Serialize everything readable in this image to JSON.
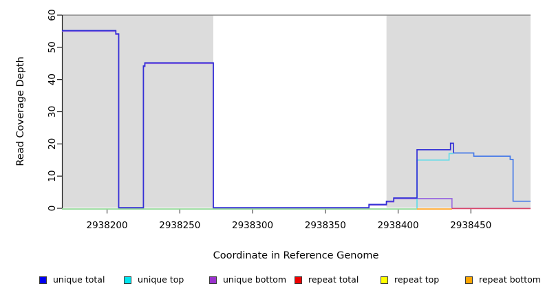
{
  "chart_data": {
    "type": "line",
    "subtype": "step-coverage-plot",
    "title": "",
    "xlabel": "Coordinate in Reference Genome",
    "ylabel": "Read Coverage Depth",
    "xlim": [
      2938169,
      2938491
    ],
    "ylim": [
      0,
      60
    ],
    "x_ticks": [
      2938200,
      2938250,
      2938300,
      2938350,
      2938400,
      2938450
    ],
    "y_ticks": [
      0,
      10,
      20,
      30,
      40,
      50,
      60
    ],
    "grid": false,
    "legend_position": "bottom",
    "background_color": "#ffffff",
    "shaded_band_color": "#dcdcdc",
    "top_border_color": "#8a8a8a",
    "shaded_regions": [
      {
        "from": 2938169,
        "to": 2938273
      },
      {
        "from": 2938392,
        "to": 2938491
      }
    ],
    "series": [
      {
        "name": "unique bottom",
        "dy": 0,
        "visible": true,
        "parts": [
          {
            "color": "#9b6ce0",
            "steps": [
              [
                2938169,
                55
              ],
              [
                2938206,
                54
              ],
              [
                2938208,
                0
              ],
              [
                2938225,
                44
              ],
              [
                2938226,
                45
              ],
              [
                2938273,
                0
              ],
              [
                2938380,
                1
              ],
              [
                2938392,
                2
              ],
              [
                2938397,
                3
              ],
              [
                2938437,
                0
              ],
              [
                2938491,
                0
              ]
            ]
          }
        ]
      },
      {
        "name": "zero baseline",
        "dy": 1.0,
        "visible": true,
        "parts": [
          {
            "color": "#90d795",
            "steps": [
              [
                2938169,
                0
              ],
              [
                2938413,
                0
              ]
            ]
          }
        ]
      },
      {
        "name": "repeat bottom",
        "dy": 1.0,
        "visible": true,
        "parts": [
          {
            "color": "#ffa426",
            "steps": [
              [
                2938413,
                0
              ],
              [
                2938437,
                0
              ]
            ]
          }
        ]
      },
      {
        "name": "repeat total",
        "dy": 0.4,
        "visible": true,
        "parts": [
          {
            "color": "#dd4b66",
            "steps": [
              [
                2938437,
                0
              ],
              [
                2938491,
                0
              ]
            ]
          }
        ]
      },
      {
        "name": "repeat top",
        "dy": 0,
        "visible": false,
        "parts": [
          {
            "color": "#ffff00",
            "steps": [
              [
                2938169,
                0
              ],
              [
                2938491,
                0
              ]
            ]
          }
        ]
      },
      {
        "name": "unique top",
        "dy": 0,
        "visible": true,
        "parts": [
          {
            "color": "#63dbe8",
            "steps": [
              [
                2938413,
                0
              ],
              [
                2938413,
                15
              ],
              [
                2938435,
                17
              ],
              [
                2938438,
                17
              ]
            ]
          }
        ]
      },
      {
        "name": "unique total",
        "dy": -0.9,
        "visible": true,
        "parts": [
          {
            "color": "#3330d6",
            "steps": [
              [
                2938169,
                55
              ],
              [
                2938206,
                54
              ],
              [
                2938208,
                0
              ],
              [
                2938225,
                44
              ],
              [
                2938226,
                45
              ],
              [
                2938273,
                0
              ],
              [
                2938380,
                1
              ],
              [
                2938392,
                2
              ],
              [
                2938397,
                3
              ],
              [
                2938413,
                18
              ],
              [
                2938436,
                20
              ],
              [
                2938438,
                17
              ]
            ]
          },
          {
            "color": "#4579e8",
            "steps": [
              [
                2938438,
                17
              ],
              [
                2938452,
                16
              ],
              [
                2938477,
                15
              ],
              [
                2938479,
                2
              ],
              [
                2938491,
                2
              ]
            ]
          }
        ]
      }
    ],
    "legend": [
      {
        "label": "unique total",
        "color": "#0000ee"
      },
      {
        "label": "unique top",
        "color": "#00e5ee"
      },
      {
        "label": "unique bottom",
        "color": "#9932cc"
      },
      {
        "label": "repeat total",
        "color": "#ee0000"
      },
      {
        "label": "repeat top",
        "color": "#ffff00"
      },
      {
        "label": "repeat bottom",
        "color": "#ffa500"
      }
    ]
  }
}
